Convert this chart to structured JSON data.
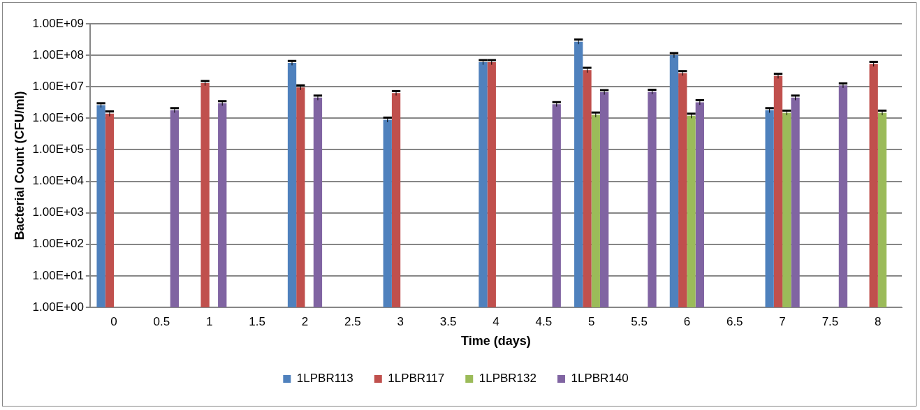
{
  "chart_data": {
    "type": "bar",
    "xlabel": "Time (days)",
    "ylabel": "Bacterial Count (CFU/ml)",
    "categories": [
      "0",
      "0.5",
      "1",
      "1.5",
      "2",
      "2.5",
      "3",
      "3.5",
      "4",
      "4.5",
      "5",
      "5.5",
      "6",
      "6.5",
      "7",
      "7.5",
      "8"
    ],
    "log": true,
    "ylim": [
      1,
      1000000000
    ],
    "yticks": [
      {
        "value": 1,
        "label": "1.00E+00"
      },
      {
        "value": 10,
        "label": "1.00E+01"
      },
      {
        "value": 100,
        "label": "1.00E+02"
      },
      {
        "value": 1000,
        "label": "1.00E+03"
      },
      {
        "value": 10000,
        "label": "1.00E+04"
      },
      {
        "value": 100000,
        "label": "1.00E+05"
      },
      {
        "value": 1000000,
        "label": "1.00E+06"
      },
      {
        "value": 10000000,
        "label": "1.00E+07"
      },
      {
        "value": 100000000,
        "label": "1.00E+08"
      },
      {
        "value": 1000000000,
        "label": "1.00E+09"
      }
    ],
    "grid": "y",
    "legend": "bottom",
    "series": [
      {
        "name": "1LPBR113",
        "color": "#4f81bd",
        "values": [
          2600000,
          null,
          null,
          null,
          57000000,
          null,
          900000,
          null,
          60000000,
          null,
          270000000,
          null,
          100000000,
          null,
          1800000,
          null,
          null
        ],
        "errors": [
          400000,
          null,
          null,
          null,
          9000000,
          null,
          150000,
          null,
          10000000,
          null,
          45000000,
          null,
          17000000,
          null,
          300000,
          null,
          null
        ]
      },
      {
        "name": "1LPBR117",
        "color": "#c0504d",
        "values": [
          1400000,
          null,
          13000000,
          null,
          9500000,
          null,
          6300000,
          null,
          60000000,
          null,
          34000000,
          null,
          27000000,
          null,
          22000000,
          null,
          53000000
        ],
        "errors": [
          250000,
          null,
          2200000,
          null,
          1600000,
          null,
          1000000,
          null,
          10000000,
          null,
          6000000,
          null,
          4500000,
          null,
          3700000,
          null,
          9000000
        ]
      },
      {
        "name": "1LPBR132",
        "color": "#9bbb59",
        "values": [
          null,
          null,
          null,
          null,
          null,
          null,
          null,
          null,
          null,
          null,
          1300000,
          null,
          1200000,
          null,
          1500000,
          null,
          1500000
        ],
        "errors": [
          null,
          null,
          null,
          null,
          null,
          null,
          null,
          null,
          null,
          null,
          220000,
          null,
          200000,
          null,
          250000,
          null,
          250000
        ]
      },
      {
        "name": "1LPBR140",
        "color": "#8064a2",
        "values": [
          null,
          1800000,
          3000000,
          null,
          4500000,
          null,
          null,
          null,
          null,
          2800000,
          6700000,
          6900000,
          3200000,
          null,
          4500000,
          11000000,
          null
        ],
        "errors": [
          null,
          300000,
          500000,
          null,
          750000,
          null,
          null,
          null,
          null,
          450000,
          1100000,
          1100000,
          550000,
          null,
          750000,
          1800000,
          null
        ]
      }
    ]
  }
}
